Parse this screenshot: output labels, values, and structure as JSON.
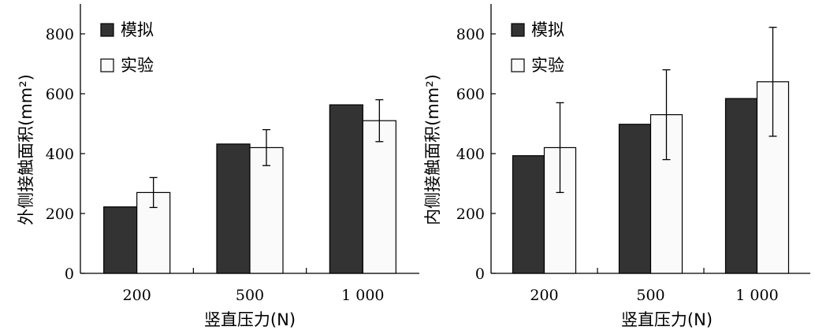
{
  "colors": {
    "sim": "#333333",
    "exp": "#fafafa",
    "stroke": "#000000"
  },
  "chart_data": [
    {
      "type": "bar",
      "title": "",
      "xlabel": "竖直压力(N)",
      "ylabel": "外侧接触面积(mm²)",
      "ylim": [
        0,
        900
      ],
      "yticks": [
        0,
        200,
        400,
        600,
        800
      ],
      "categories": [
        "200",
        "500",
        "1 000"
      ],
      "series": [
        {
          "name": "模拟",
          "values": [
            222,
            432,
            563
          ]
        },
        {
          "name": "实验",
          "values": [
            270,
            420,
            510
          ],
          "error": [
            50,
            60,
            70
          ]
        }
      ],
      "legend": "top-left",
      "grid": false
    },
    {
      "type": "bar",
      "title": "",
      "xlabel": "竖直压力(N)",
      "ylabel": "内侧接触面积(mm²)",
      "ylim": [
        0,
        900
      ],
      "yticks": [
        0,
        200,
        400,
        600,
        800
      ],
      "categories": [
        "200",
        "500",
        "1 000"
      ],
      "series": [
        {
          "name": "模拟",
          "values": [
            393,
            498,
            584
          ]
        },
        {
          "name": "实验",
          "values": [
            420,
            530,
            640
          ],
          "error": [
            150,
            150,
            182
          ]
        }
      ],
      "legend": "top-left",
      "grid": false
    }
  ]
}
